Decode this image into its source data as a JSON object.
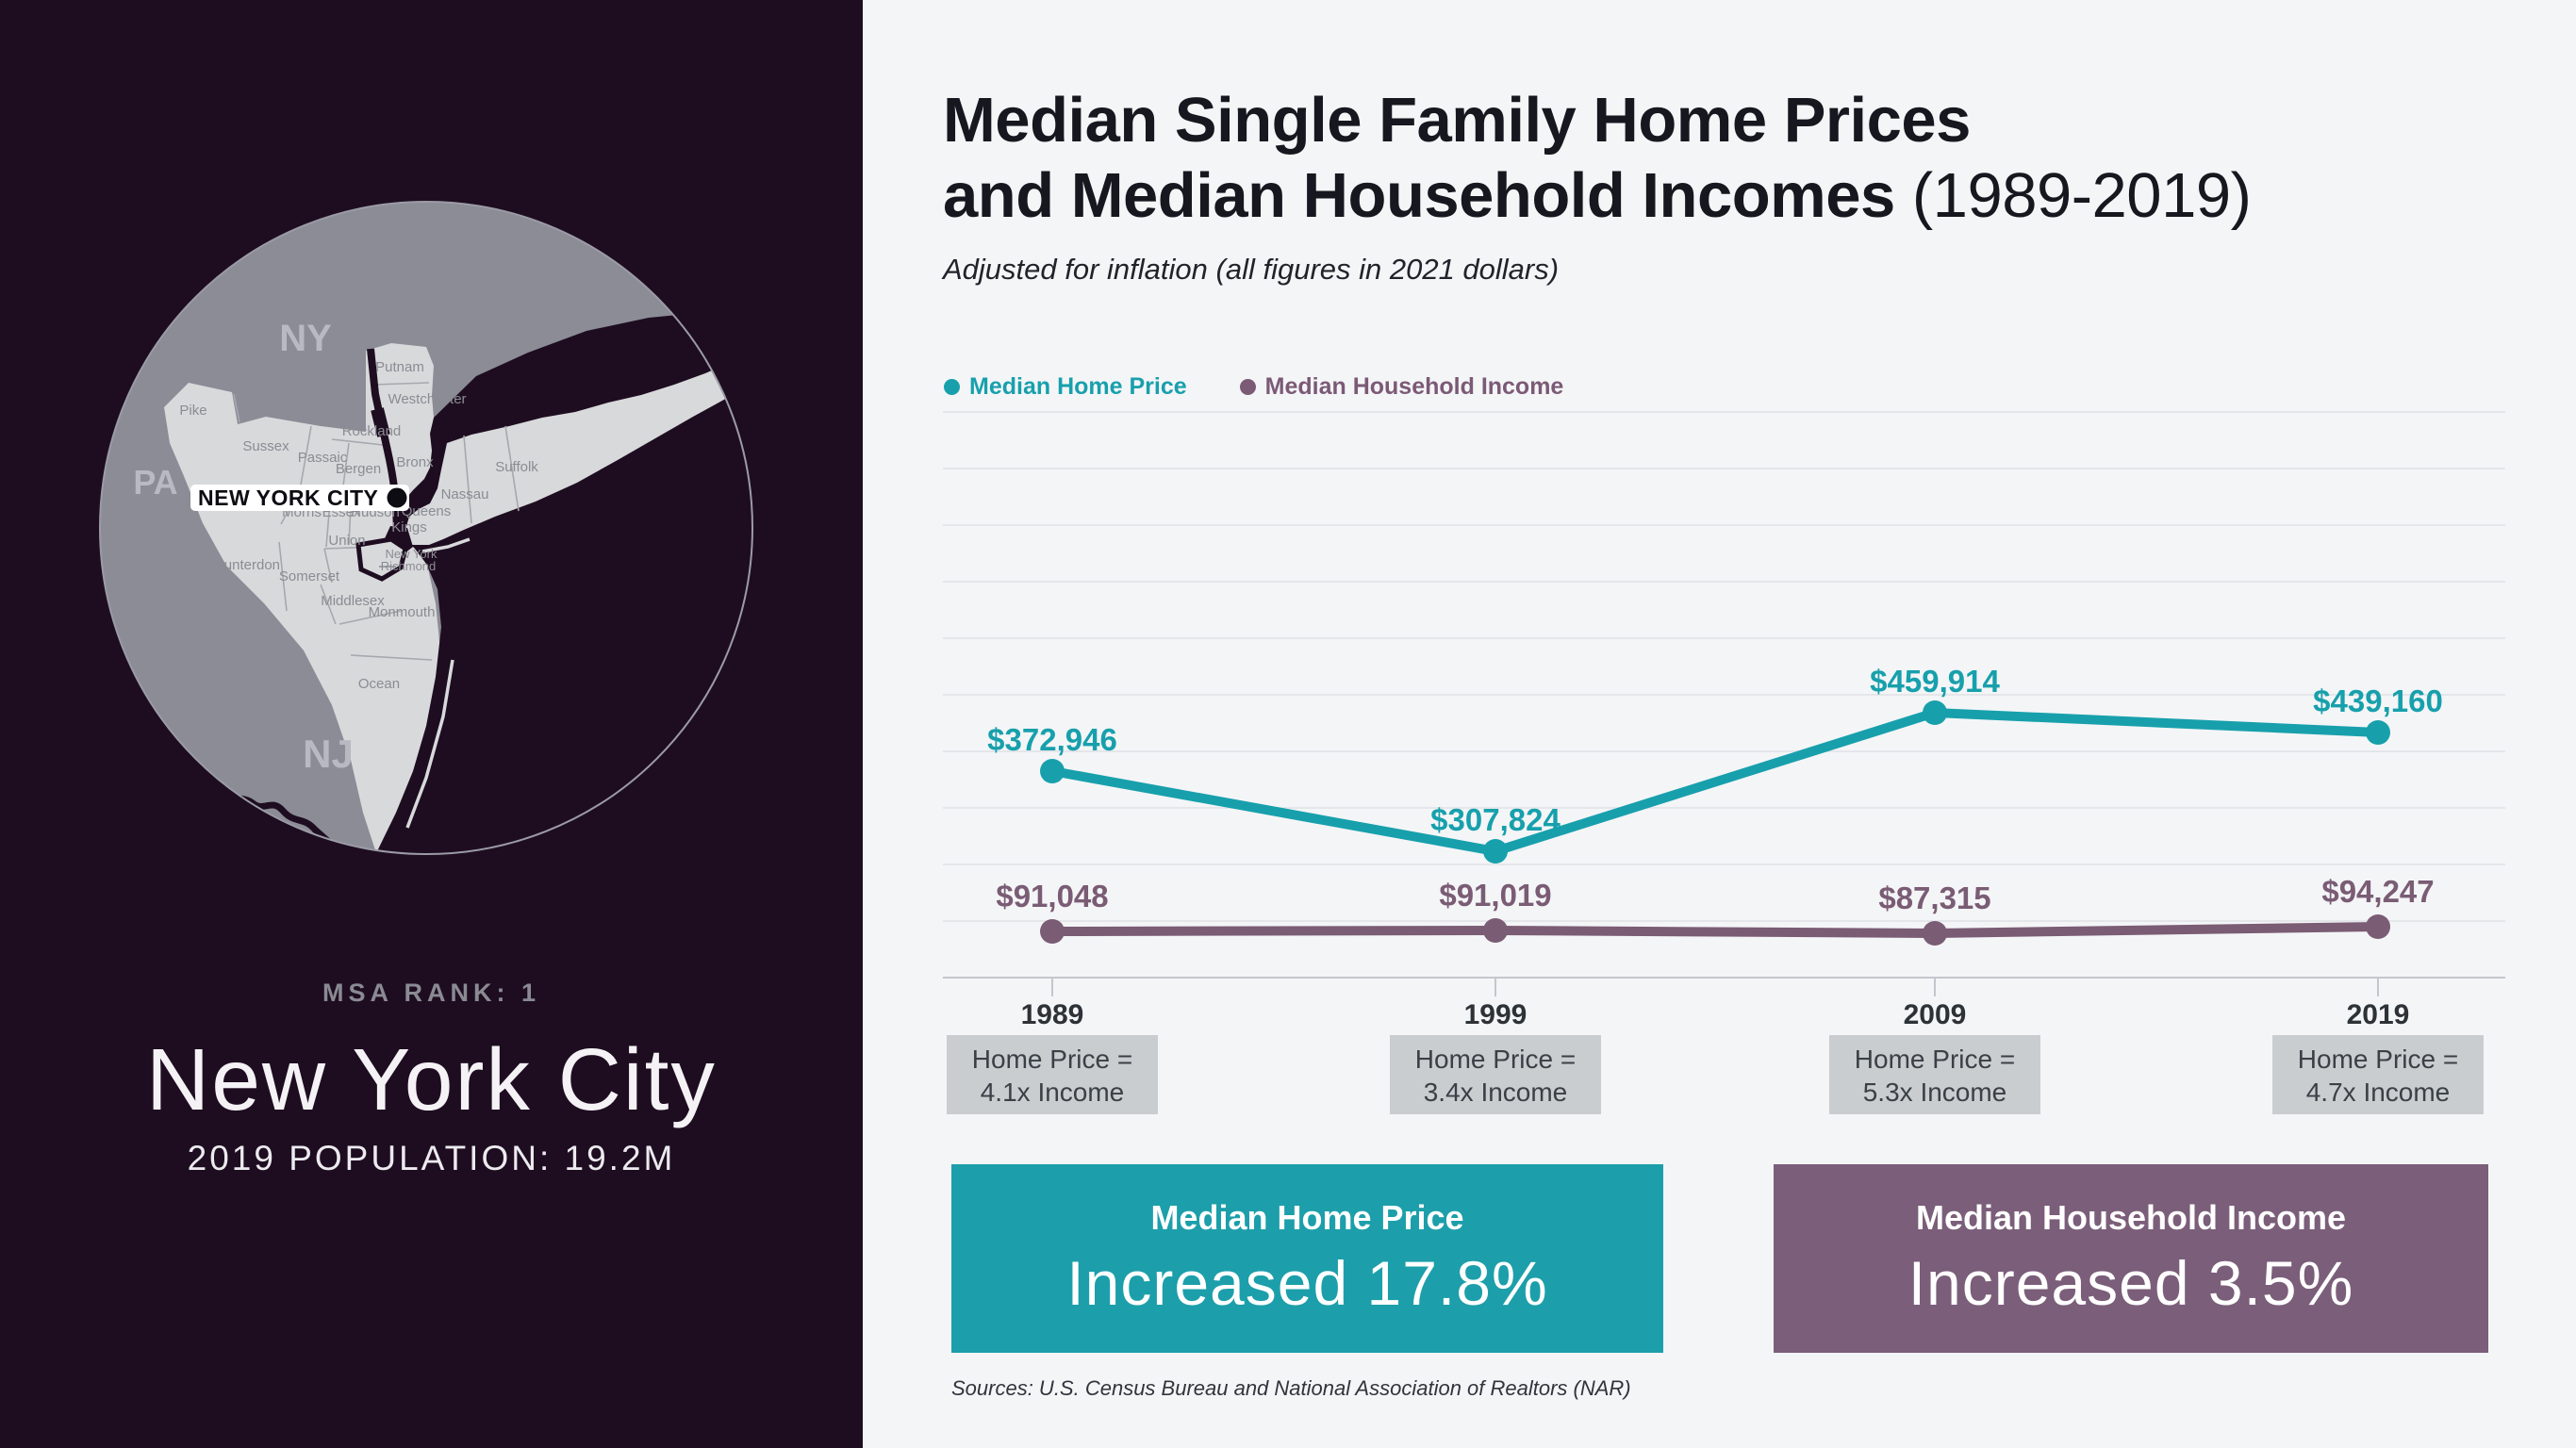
{
  "left_panel": {
    "msa_rank_label": "MSA RANK: 1",
    "city_name": "New York City",
    "population_label": "2019 POPULATION: 19.2M",
    "map": {
      "state_labels": {
        "ny": "NY",
        "pa": "PA",
        "nj": "NJ"
      },
      "city_marker_label": "NEW YORK CITY",
      "county_labels": [
        "Pike",
        "Putnam",
        "Westchester",
        "Rockland",
        "Sussex",
        "Passaic",
        "Bergen",
        "Bronx",
        "Morris",
        "Essex",
        "Hudson",
        "Union",
        "Hunterdon",
        "Somerset",
        "Middlesex",
        "Monmouth",
        "Ocean",
        "Nassau",
        "Suffolk",
        "Queens",
        "Kings",
        "New York",
        "Richmond"
      ]
    }
  },
  "chart": {
    "title_line1": "Median Single Family Home Prices",
    "title_line2_bold": "and Median Household Incomes",
    "title_line2_light": "(1989-2019)",
    "subtitle": "Adjusted for inflation (all figures in 2021 dollars)",
    "legend": {
      "home": {
        "label": "Median Home Price",
        "color": "#17a0ac"
      },
      "income": {
        "label": "Median Household Income",
        "color": "#7b5a76"
      }
    },
    "sources": "Sources: U.S. Census Bureau and National Association of Realtors (NAR)"
  },
  "chart_data": {
    "type": "line",
    "categories": [
      "1989",
      "1999",
      "2009",
      "2019"
    ],
    "series": [
      {
        "name": "Median Home Price",
        "color": "#17a0ac",
        "values": [
          372946,
          307824,
          459914,
          439160
        ],
        "labels": [
          "$372,946",
          "$307,824",
          "$459,914",
          "$439,160"
        ]
      },
      {
        "name": "Median Household Income",
        "color": "#7a5c74",
        "values": [
          91048,
          91019,
          87315,
          94247
        ],
        "labels": [
          "$91,048",
          "$91,019",
          "$87,315",
          "$94,247"
        ]
      }
    ],
    "ratio_boxes": [
      {
        "line1": "Home Price =",
        "line2": "4.1x Income"
      },
      {
        "line1": "Home Price =",
        "line2": "3.4x Income"
      },
      {
        "line1": "Home Price =",
        "line2": "5.3x Income"
      },
      {
        "line1": "Home Price =",
        "line2": "4.7x Income"
      }
    ],
    "title": "Median Single Family Home Prices and Median Household Incomes (1989-2019)",
    "xlabel": "",
    "ylabel": "",
    "grid": true,
    "gridline_count": 11,
    "legend_position": "top-left",
    "y_axis_tick_labels_shown": false
  },
  "callouts": [
    {
      "title": "Median Home Price",
      "stat": "Increased 17.8%",
      "bg": "#1c9faa"
    },
    {
      "title": "Median Household Income",
      "stat": "Increased 3.5%",
      "bg": "#7b5e7a"
    }
  ]
}
